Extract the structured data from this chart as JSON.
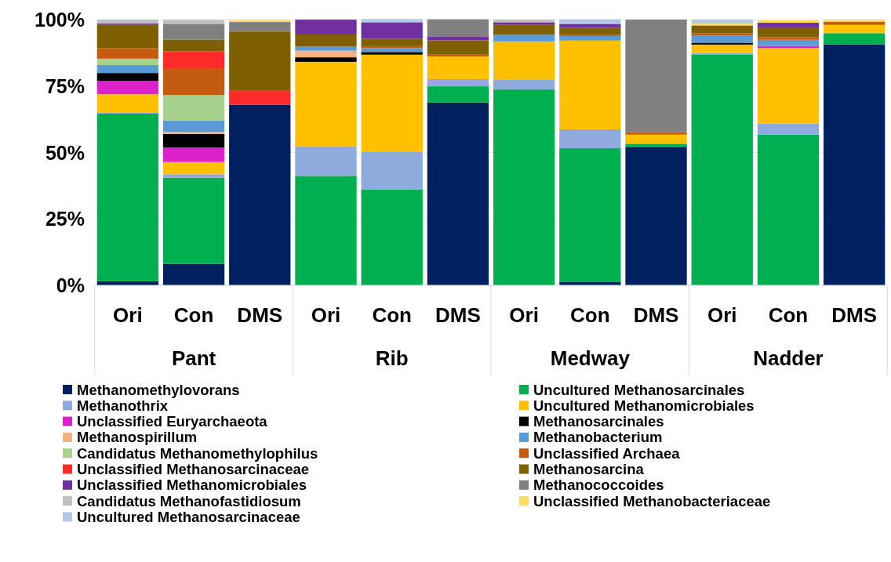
{
  "chart_data": {
    "type": "bar",
    "stacked": true,
    "categories": [
      "Ori",
      "Con",
      "DMS",
      "Ori",
      "Con",
      "DMS",
      "Ori",
      "Con",
      "DMS",
      "Ori",
      "Con",
      "DMS"
    ],
    "annotations": [
      "Pant",
      "Rib",
      "Medway",
      "Nadder"
    ],
    "ylim": [
      0,
      100
    ],
    "yticks": [
      {
        "value": 0,
        "label": "0%"
      },
      {
        "value": 25,
        "label": "25%"
      },
      {
        "value": 50,
        "label": "50%"
      },
      {
        "value": 75,
        "label": "75%"
      },
      {
        "value": 100,
        "label": "100%"
      }
    ],
    "grid": "y",
    "legend": "bottom",
    "series": [
      {
        "name": "Methanomethylovorans",
        "color": "#002060",
        "values": [
          1.5,
          8.1,
          68,
          0,
          0,
          68.8,
          0,
          1.2,
          52.1,
          0,
          0,
          90.7
        ]
      },
      {
        "name": "Uncultured Methanosarcinales",
        "color": "#00b050",
        "values": [
          63.1,
          32.4,
          0,
          41.2,
          36.1,
          6.1,
          73.7,
          50.4,
          1.2,
          86.9,
          56.7,
          4.2
        ]
      },
      {
        "name": "Methanothrix",
        "color": "#8faadc",
        "values": [
          0.3,
          1.3,
          0,
          11.1,
          14.1,
          2.7,
          3.6,
          7.1,
          0,
          0.5,
          4.2,
          0
        ]
      },
      {
        "name": "Uncultured Methanomicrobiales",
        "color": "#ffc000",
        "values": [
          7,
          4.6,
          0,
          31.8,
          36.6,
          8.5,
          14.5,
          33.4,
          3.4,
          3.2,
          28.4,
          3.1
        ]
      },
      {
        "name": "Unclassified Euryarchaeota",
        "color": "#dd22cc",
        "values": [
          5,
          5.4,
          0,
          0,
          0,
          0,
          0,
          0,
          0,
          0,
          0.8,
          0
        ]
      },
      {
        "name": "Methanosarcinales",
        "color": "#000000",
        "values": [
          3,
          5.2,
          0,
          1.7,
          1,
          0,
          0,
          0,
          0,
          0.7,
          0,
          0
        ]
      },
      {
        "name": "Methanospirillum",
        "color": "#f4b183",
        "values": [
          0,
          0.7,
          0,
          2.5,
          0,
          0,
          0,
          0,
          0,
          0,
          0,
          0
        ]
      },
      {
        "name": "Methanobacterium",
        "color": "#5b9bd5",
        "values": [
          3,
          4.4,
          0,
          1.5,
          1.5,
          0,
          2.5,
          1.7,
          0,
          2.6,
          2.3,
          0
        ]
      },
      {
        "name": "Candidatus Methanomethylophilus",
        "color": "#a9d18e",
        "values": [
          2.4,
          9.5,
          0,
          0,
          0,
          0,
          0,
          0,
          0,
          0,
          0,
          0
        ]
      },
      {
        "name": "Unclassified Archaea",
        "color": "#c55a11",
        "values": [
          4,
          10.1,
          0,
          0,
          0.7,
          0.7,
          0,
          0.5,
          1,
          1,
          1,
          1.2
        ]
      },
      {
        "name": "Unclassified Methanosarcinaceae",
        "color": "#ff2a2a",
        "values": [
          0,
          6.4,
          5.2,
          0,
          0,
          0,
          0,
          0,
          0,
          0,
          0,
          0
        ]
      },
      {
        "name": "Methanosarcina",
        "color": "#7f6000",
        "values": [
          8.9,
          4.4,
          22.3,
          4.6,
          2.8,
          5.4,
          3.7,
          2.6,
          0,
          2.9,
          3.4,
          0
        ]
      },
      {
        "name": "Unclassified Methanomicrobiales",
        "color": "#7030a0",
        "values": [
          0.3,
          0,
          0,
          5.6,
          6.2,
          1.5,
          1,
          1.5,
          0,
          0,
          2,
          0
        ]
      },
      {
        "name": "Methanococcoides",
        "color": "#808080",
        "values": [
          0,
          5.9,
          3.6,
          0,
          0,
          6.4,
          0,
          0,
          42.3,
          0,
          0,
          0
        ]
      },
      {
        "name": "Candidatus Methanofastidiosum",
        "color": "#bfbfbf",
        "values": [
          1.5,
          1.5,
          0,
          0,
          0,
          0,
          1,
          0,
          0,
          0,
          0,
          0
        ]
      },
      {
        "name": "Unclassified Methanobacteriaceae",
        "color": "#ffd966",
        "values": [
          0,
          0,
          0.8,
          0,
          0,
          0,
          0,
          0,
          0,
          0.7,
          1,
          0.8
        ]
      },
      {
        "name": "Uncultured Methanosarcinaceae",
        "color": "#b4c7e7",
        "values": [
          0,
          0,
          0,
          null,
          1.2,
          0,
          0,
          1.7,
          0,
          1.5,
          0,
          0
        ]
      }
    ]
  }
}
